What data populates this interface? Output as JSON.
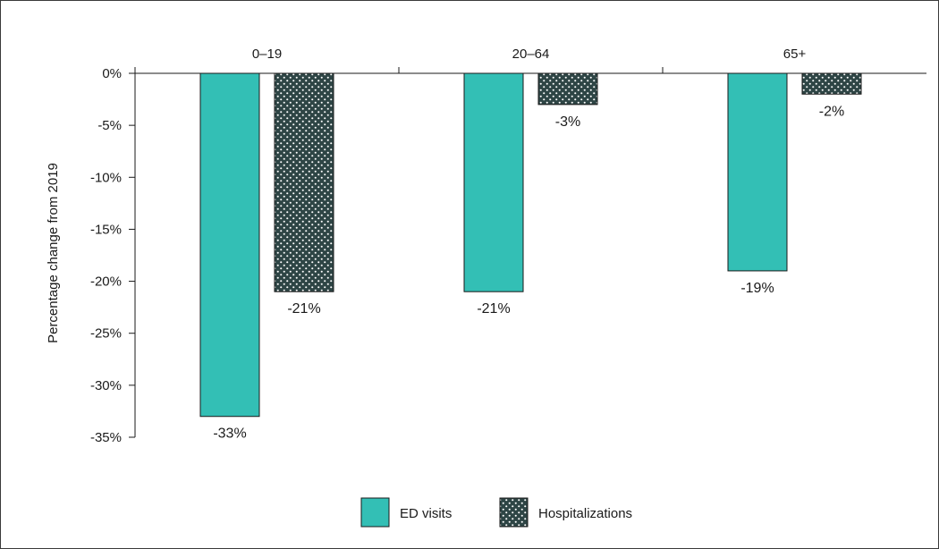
{
  "chart_data": {
    "type": "bar",
    "categories": [
      "0–19",
      "20–64",
      "65+"
    ],
    "series": [
      {
        "name": "ED visits",
        "values": [
          -33,
          -21,
          -19
        ],
        "labels": [
          "-33%",
          "-21%",
          "-19%"
        ],
        "color": "#33bfb5",
        "pattern": "solid"
      },
      {
        "name": "Hospitalizations",
        "values": [
          -21,
          -3,
          -2
        ],
        "labels": [
          "-21%",
          "-3%",
          "-2%"
        ],
        "color": "#2e4545",
        "pattern": "dots"
      }
    ],
    "title": "",
    "xlabel": "",
    "ylabel": "Percentage change from 2019",
    "ylim": [
      -35,
      0
    ],
    "yticks": [
      0,
      -5,
      -10,
      -15,
      -20,
      -25,
      -30,
      -35
    ],
    "ytick_labels": [
      "0%",
      "-5%",
      "-10%",
      "-15%",
      "-20%",
      "-25%",
      "-30%",
      "-35%"
    ],
    "category_axis_position": "top",
    "grid": false,
    "legend_position": "bottom-center",
    "border_color": "#3a3a3a",
    "axis_color": "#1a1a1a"
  }
}
